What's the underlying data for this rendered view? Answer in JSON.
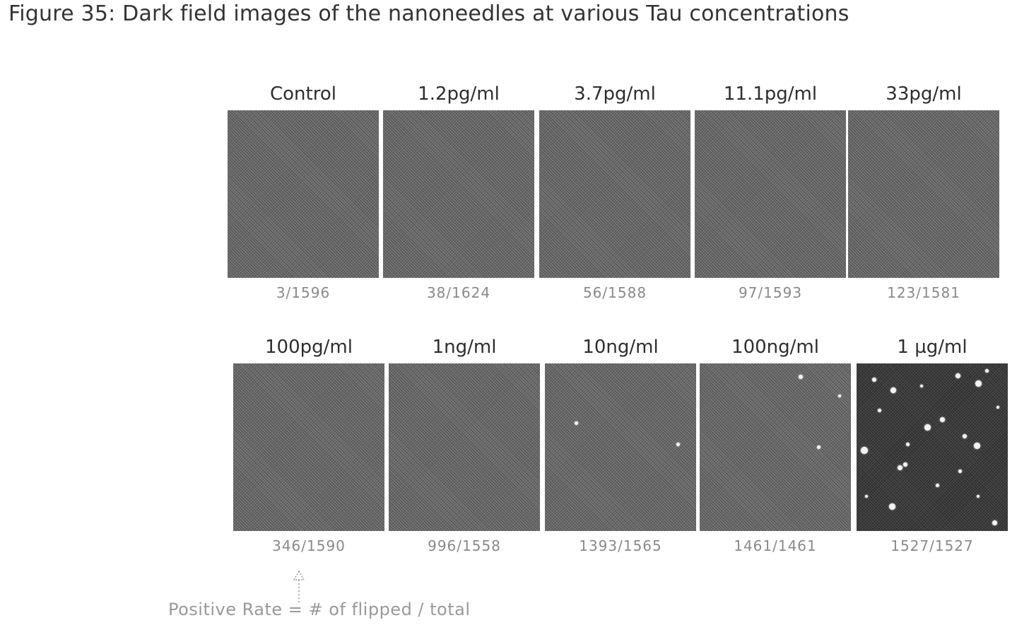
{
  "figure_title": "Figure 35: Dark field images of the nanoneedles at various Tau concentrations",
  "rows": [
    {
      "panels": [
        {
          "label": "Control",
          "ratio": "3/1596"
        },
        {
          "label": "1.2pg/ml",
          "ratio": "38/1624"
        },
        {
          "label": "3.7pg/ml",
          "ratio": "56/1588"
        },
        {
          "label": "11.1pg/ml",
          "ratio": "97/1593"
        },
        {
          "label": "33pg/ml",
          "ratio": "123/1581"
        }
      ]
    },
    {
      "panels": [
        {
          "label": "100pg/ml",
          "ratio": "346/1590"
        },
        {
          "label": "1ng/ml",
          "ratio": "996/1558"
        },
        {
          "label": "10ng/ml",
          "ratio": "1393/1565"
        },
        {
          "label": "100ng/ml",
          "ratio": "1461/1461"
        },
        {
          "label": "1 µg/ml",
          "ratio": "1527/1527"
        }
      ]
    }
  ],
  "annotation": {
    "text": "Positive Rate = # of flipped / total",
    "arrow_icon": "dotted-up-arrow-icon"
  },
  "colors": {
    "image_gray": "#6e6e6e",
    "image_dark": "#3a3a3a",
    "ratio_text": "#8a8a8a"
  }
}
